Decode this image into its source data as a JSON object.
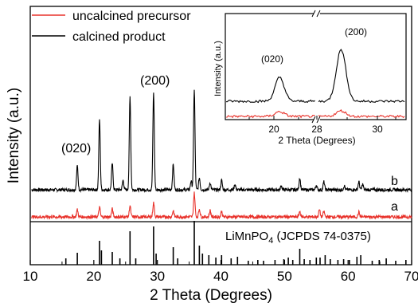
{
  "chart_data": [
    {
      "type": "line",
      "xlabel": "2 Theta (Degrees)",
      "ylabel": "Intensity (a.u.)",
      "xlim": [
        10,
        70
      ],
      "x_ticks": [
        10,
        20,
        30,
        40,
        50,
        60,
        70
      ],
      "legend": {
        "placement": "top-left",
        "entries": [
          {
            "label": "uncalcined precursor",
            "color": "#e8322b"
          },
          {
            "label": "calcined product",
            "color": "#000000"
          }
        ]
      },
      "curve_labels": {
        "calcined": "b",
        "uncalcined": "a"
      },
      "peak_annotations": [
        {
          "label": "(020)",
          "x": 17.2
        },
        {
          "label": "(200)",
          "x": 29.8
        }
      ],
      "series": [
        {
          "name": "calcined product",
          "color": "#000000",
          "baseline": 0,
          "peaks": [
            {
              "x": 17.4,
              "y": 30
            },
            {
              "x": 20.9,
              "y": 88
            },
            {
              "x": 22.9,
              "y": 33
            },
            {
              "x": 24.6,
              "y": 12
            },
            {
              "x": 25.7,
              "y": 117
            },
            {
              "x": 29.4,
              "y": 122
            },
            {
              "x": 32.5,
              "y": 32
            },
            {
              "x": 35.3,
              "y": 11
            },
            {
              "x": 35.8,
              "y": 126
            },
            {
              "x": 36.6,
              "y": 15
            },
            {
              "x": 38.3,
              "y": 9
            },
            {
              "x": 40.1,
              "y": 12
            },
            {
              "x": 42.2,
              "y": 7
            },
            {
              "x": 49.5,
              "y": 5
            },
            {
              "x": 52.4,
              "y": 15
            },
            {
              "x": 55.0,
              "y": 6
            },
            {
              "x": 56.2,
              "y": 10
            },
            {
              "x": 59.4,
              "y": 5
            },
            {
              "x": 61.7,
              "y": 10
            },
            {
              "x": 62.3,
              "y": 7
            }
          ]
        },
        {
          "name": "uncalcined precursor",
          "color": "#e8322b",
          "baseline": 0,
          "peaks": [
            {
              "x": 17.4,
              "y": 9
            },
            {
              "x": 20.9,
              "y": 12
            },
            {
              "x": 22.9,
              "y": 10
            },
            {
              "x": 25.7,
              "y": 14
            },
            {
              "x": 29.4,
              "y": 18
            },
            {
              "x": 32.5,
              "y": 8
            },
            {
              "x": 35.8,
              "y": 30
            },
            {
              "x": 36.6,
              "y": 10
            },
            {
              "x": 38.3,
              "y": 8
            },
            {
              "x": 40.1,
              "y": 7
            },
            {
              "x": 52.4,
              "y": 7
            },
            {
              "x": 55.5,
              "y": 9
            },
            {
              "x": 56.2,
              "y": 7
            },
            {
              "x": 61.7,
              "y": 6
            }
          ]
        }
      ],
      "reference": {
        "label_main": "LiMnPO",
        "label_sub": "4",
        "label_rest": " (JCPDS 74-0375)",
        "bars": [
          {
            "x": 15.6,
            "y": 8
          },
          {
            "x": 17.4,
            "y": 15
          },
          {
            "x": 20.9,
            "y": 30
          },
          {
            "x": 21.2,
            "y": 18
          },
          {
            "x": 22.9,
            "y": 16
          },
          {
            "x": 24.1,
            "y": 8
          },
          {
            "x": 25.7,
            "y": 42
          },
          {
            "x": 26.6,
            "y": 8
          },
          {
            "x": 29.4,
            "y": 48
          },
          {
            "x": 29.8,
            "y": 14
          },
          {
            "x": 32.5,
            "y": 22
          },
          {
            "x": 33.2,
            "y": 8
          },
          {
            "x": 35.8,
            "y": 55
          },
          {
            "x": 36.6,
            "y": 24
          },
          {
            "x": 37.1,
            "y": 14
          },
          {
            "x": 38.1,
            "y": 12
          },
          {
            "x": 39.2,
            "y": 9
          },
          {
            "x": 40.1,
            "y": 12
          },
          {
            "x": 41.6,
            "y": 8
          },
          {
            "x": 42.6,
            "y": 10
          },
          {
            "x": 44.3,
            "y": 5
          },
          {
            "x": 45.8,
            "y": 6
          },
          {
            "x": 46.7,
            "y": 5
          },
          {
            "x": 48.5,
            "y": 6
          },
          {
            "x": 49.9,
            "y": 7
          },
          {
            "x": 50.6,
            "y": 9
          },
          {
            "x": 51.3,
            "y": 6
          },
          {
            "x": 52.4,
            "y": 20
          },
          {
            "x": 53.1,
            "y": 7
          },
          {
            "x": 54.0,
            "y": 6
          },
          {
            "x": 55.0,
            "y": 9
          },
          {
            "x": 55.6,
            "y": 9
          },
          {
            "x": 56.4,
            "y": 12
          },
          {
            "x": 57.2,
            "y": 7
          },
          {
            "x": 58.4,
            "y": 6
          },
          {
            "x": 59.3,
            "y": 7
          },
          {
            "x": 60.2,
            "y": 6
          },
          {
            "x": 61.4,
            "y": 10
          },
          {
            "x": 62.0,
            "y": 12
          },
          {
            "x": 63.8,
            "y": 5
          },
          {
            "x": 64.9,
            "y": 6
          },
          {
            "x": 66.0,
            "y": 8
          },
          {
            "x": 67.5,
            "y": 5
          },
          {
            "x": 69.1,
            "y": 6
          }
        ]
      }
    },
    {
      "type": "line",
      "inset": true,
      "xlabel": "2 Theta (Degrees)",
      "ylabel": "Intensity (a.u.)",
      "x_ticks": [
        "20",
        "28",
        "30"
      ],
      "axis_break": true,
      "segments": [
        {
          "xlim": [
            19,
            21.5
          ]
        },
        {
          "xlim": [
            28.7,
            31
          ]
        }
      ],
      "peak_annotations": [
        {
          "label": "(020)",
          "x": 20.5
        },
        {
          "label": "(200)",
          "x": 29.3
        }
      ],
      "series": [
        {
          "name": "calcined product",
          "color": "#000000",
          "peaks": [
            {
              "x": 20.5,
              "y": 30
            },
            {
              "x": 29.3,
              "y": 65
            }
          ]
        },
        {
          "name": "uncalcined precursor",
          "color": "#e8322b",
          "peaks": [
            {
              "x": 20.5,
              "y": 6
            },
            {
              "x": 29.3,
              "y": 7
            }
          ]
        }
      ]
    }
  ]
}
